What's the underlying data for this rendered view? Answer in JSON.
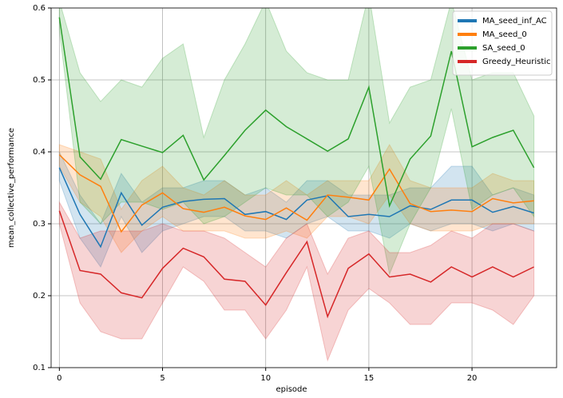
{
  "chart_data": {
    "type": "line",
    "xlabel": "episode",
    "ylabel": "mean_collective_performance",
    "x": [
      0,
      1,
      2,
      3,
      4,
      5,
      6,
      7,
      8,
      9,
      10,
      11,
      12,
      13,
      14,
      15,
      16,
      17,
      18,
      19,
      20,
      21,
      22,
      23
    ],
    "xlim": [
      -0.4,
      24.1
    ],
    "xticks": [
      0,
      5,
      10,
      15,
      20
    ],
    "ylim": [
      0.1,
      0.6
    ],
    "yticks": [
      0.1,
      0.2,
      0.3,
      0.4,
      0.5,
      0.6
    ],
    "grid": true,
    "legend": "upper right",
    "series": [
      {
        "name": "MA_seed_inf_AC",
        "color": "#1f77b4",
        "values": [
          0.378,
          0.313,
          0.268,
          0.343,
          0.298,
          0.323,
          0.331,
          0.334,
          0.335,
          0.313,
          0.317,
          0.306,
          0.333,
          0.339,
          0.31,
          0.313,
          0.31,
          0.325,
          0.32,
          0.333,
          0.333,
          0.316,
          0.324,
          0.315
        ],
        "lower": [
          0.36,
          0.28,
          0.24,
          0.31,
          0.26,
          0.29,
          0.3,
          0.31,
          0.31,
          0.29,
          0.29,
          0.28,
          0.3,
          0.31,
          0.29,
          0.29,
          0.28,
          0.3,
          0.29,
          0.3,
          0.3,
          0.29,
          0.3,
          0.29
        ],
        "upper": [
          0.4,
          0.34,
          0.3,
          0.37,
          0.33,
          0.35,
          0.35,
          0.36,
          0.36,
          0.34,
          0.35,
          0.33,
          0.36,
          0.36,
          0.34,
          0.34,
          0.34,
          0.35,
          0.35,
          0.38,
          0.38,
          0.34,
          0.35,
          0.34
        ]
      },
      {
        "name": "MA_seed_0",
        "color": "#ff7f0e",
        "values": [
          0.396,
          0.368,
          0.352,
          0.289,
          0.326,
          0.343,
          0.321,
          0.316,
          0.323,
          0.311,
          0.306,
          0.322,
          0.305,
          0.34,
          0.337,
          0.333,
          0.376,
          0.328,
          0.317,
          0.319,
          0.317,
          0.335,
          0.329,
          0.332
        ],
        "lower": [
          0.38,
          0.33,
          0.31,
          0.26,
          0.29,
          0.31,
          0.29,
          0.29,
          0.29,
          0.28,
          0.28,
          0.29,
          0.28,
          0.31,
          0.31,
          0.3,
          0.34,
          0.3,
          0.29,
          0.29,
          0.29,
          0.3,
          0.3,
          0.3
        ],
        "upper": [
          0.41,
          0.4,
          0.39,
          0.32,
          0.36,
          0.38,
          0.35,
          0.34,
          0.36,
          0.34,
          0.34,
          0.36,
          0.34,
          0.36,
          0.36,
          0.36,
          0.41,
          0.36,
          0.35,
          0.35,
          0.35,
          0.37,
          0.36,
          0.36
        ]
      },
      {
        "name": "SA_seed_0",
        "color": "#2ca02c",
        "values": [
          0.587,
          0.393,
          0.362,
          0.417,
          0.408,
          0.399,
          0.423,
          0.361,
          0.395,
          0.43,
          0.458,
          0.435,
          0.418,
          0.401,
          0.418,
          0.49,
          0.325,
          0.39,
          0.422,
          0.54,
          0.407,
          0.42,
          0.43,
          0.378
        ],
        "lower": [
          0.57,
          0.33,
          0.3,
          0.33,
          0.33,
          0.32,
          0.33,
          0.3,
          0.31,
          0.33,
          0.35,
          0.34,
          0.34,
          0.31,
          0.33,
          0.38,
          0.23,
          0.3,
          0.35,
          0.46,
          0.32,
          0.34,
          0.35,
          0.31
        ],
        "upper": [
          0.61,
          0.51,
          0.47,
          0.5,
          0.49,
          0.53,
          0.55,
          0.42,
          0.5,
          0.55,
          0.61,
          0.54,
          0.51,
          0.5,
          0.5,
          0.62,
          0.44,
          0.49,
          0.5,
          0.61,
          0.5,
          0.51,
          0.51,
          0.45
        ]
      },
      {
        "name": "Greedy_Heuristic",
        "color": "#d62728",
        "values": [
          0.318,
          0.235,
          0.23,
          0.204,
          0.197,
          0.238,
          0.266,
          0.254,
          0.223,
          0.22,
          0.187,
          0.232,
          0.275,
          0.171,
          0.238,
          0.258,
          0.226,
          0.23,
          0.219,
          0.24,
          0.226,
          0.24,
          0.226,
          0.24
        ],
        "lower": [
          0.3,
          0.19,
          0.15,
          0.14,
          0.14,
          0.19,
          0.24,
          0.22,
          0.18,
          0.18,
          0.14,
          0.18,
          0.24,
          0.11,
          0.18,
          0.21,
          0.19,
          0.16,
          0.16,
          0.19,
          0.19,
          0.18,
          0.16,
          0.2
        ],
        "upper": [
          0.33,
          0.28,
          0.29,
          0.29,
          0.29,
          0.3,
          0.29,
          0.29,
          0.28,
          0.26,
          0.24,
          0.28,
          0.3,
          0.23,
          0.28,
          0.29,
          0.26,
          0.26,
          0.27,
          0.29,
          0.28,
          0.3,
          0.3,
          0.29
        ]
      }
    ]
  }
}
